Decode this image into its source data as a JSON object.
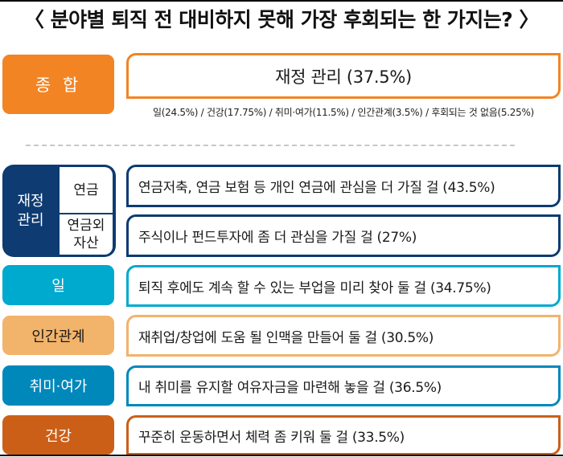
{
  "title": "〈 분야별 퇴직 전 대비하지 못해 가장 후회되는 한 가지는? 〉",
  "summary": {
    "label": "종 합",
    "answer": "재정 관리 (37.5%)",
    "breakdown": "일(24.5%) / 건강(17.75%) / 취미·여가(11.5%) / 인간관계(3.5%) / 후회되는 것 없음(5.25%)",
    "color": "#F28424"
  },
  "categories": [
    {
      "label": "재정\n관리",
      "color": "#0D3B72",
      "subcategories": [
        {
          "label": "연금",
          "answer": "연금저축, 연금 보험 등 개인 연금에 관심을 더 가질 걸 (43.5%)"
        },
        {
          "label": "연금외\n자산",
          "answer": "주식이나 펀드투자에 좀 더 관심을 가질 걸 (27%)"
        }
      ]
    },
    {
      "label": "일",
      "answer": "퇴직 후에도 계속 할 수 있는 부업을 미리 찾아 둘 걸 (34.75%)",
      "color": "#00A9CE"
    },
    {
      "label": "인간관계",
      "answer": "재취업/창업에 도움 될 인맥을 만들어 둘 걸 (30.5%)",
      "color": "#F2B36B"
    },
    {
      "label": "취미·여가",
      "answer": "내 취미를 유지할 여유자금을 마련해 놓을 걸 (36.5%)",
      "color": "#0088BB"
    },
    {
      "label": "건강",
      "answer": "꾸준히 운동하면서 체력 좀 키워 둘 걸 (33.5%)",
      "color": "#CB5F18"
    }
  ]
}
